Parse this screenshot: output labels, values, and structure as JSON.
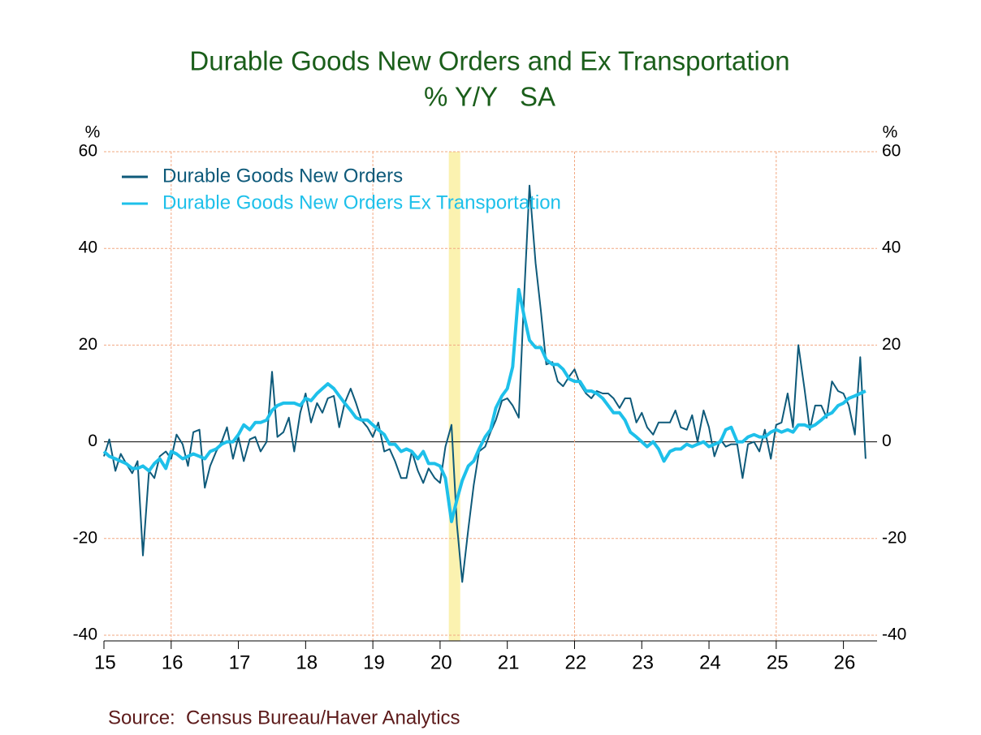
{
  "chart_data": {
    "type": "line",
    "title": "Durable Goods New Orders and Ex Transportation",
    "subtitle": "% Y/Y   SA",
    "y_unit_label": "%",
    "source": "Source:  Census Bureau/Haver Analytics",
    "title_color": "#1a5e1a",
    "source_color": "#5c1a1a",
    "xlim": [
      2015,
      2026.5
    ],
    "ylim": [
      -40,
      60
    ],
    "yticks": [
      -40,
      -20,
      0,
      20,
      40,
      60
    ],
    "xticks": [
      {
        "value": 2015.5,
        "label": "15"
      },
      {
        "value": 2016.5,
        "label": "16"
      },
      {
        "value": 2017.5,
        "label": "17"
      },
      {
        "value": 2018.5,
        "label": "18"
      },
      {
        "value": 2019.5,
        "label": "19"
      },
      {
        "value": 2020.5,
        "label": "20"
      },
      {
        "value": 2021.5,
        "label": "21"
      },
      {
        "value": 2022.5,
        "label": "22"
      },
      {
        "value": 2023.5,
        "label": "23"
      },
      {
        "value": 2024.5,
        "label": "24"
      },
      {
        "value": 2025.5,
        "label": "25"
      },
      {
        "value": 2026.5,
        "label": "26"
      }
    ],
    "xtick_marks": [
      2015,
      2016,
      2017,
      2018,
      2019,
      2020,
      2021,
      2022,
      2023,
      2024,
      2025,
      2026
    ],
    "xgrid_lines": [
      2016,
      2019,
      2022,
      2025
    ],
    "grid": true,
    "grid_color": "#f2a882",
    "shade": {
      "x": [
        2020.13,
        2020.3
      ],
      "color": "#fbf2b0"
    },
    "legend": "upper left",
    "x": [
      2015,
      2015.08,
      2015.17,
      2015.25,
      2015.33,
      2015.42,
      2015.5,
      2015.58,
      2015.67,
      2015.75,
      2015.83,
      2015.92,
      2016,
      2016.08,
      2016.17,
      2016.25,
      2016.33,
      2016.42,
      2016.5,
      2016.58,
      2016.67,
      2016.75,
      2016.83,
      2016.92,
      2017,
      2017.08,
      2017.17,
      2017.25,
      2017.33,
      2017.42,
      2017.5,
      2017.58,
      2017.67,
      2017.75,
      2017.83,
      2017.92,
      2018,
      2018.08,
      2018.17,
      2018.25,
      2018.33,
      2018.42,
      2018.5,
      2018.58,
      2018.67,
      2018.75,
      2018.83,
      2018.92,
      2019,
      2019.08,
      2019.17,
      2019.25,
      2019.33,
      2019.42,
      2019.5,
      2019.58,
      2019.67,
      2019.75,
      2019.83,
      2019.92,
      2020,
      2020.08,
      2020.17,
      2020.25,
      2020.33,
      2020.42,
      2020.5,
      2020.58,
      2020.67,
      2020.75,
      2020.83,
      2020.92,
      2021,
      2021.08,
      2021.17,
      2021.25,
      2021.33,
      2021.42,
      2021.5,
      2021.58,
      2021.67,
      2021.75,
      2021.83,
      2021.92,
      2022,
      2022.08,
      2022.17,
      2022.25,
      2022.33,
      2022.42,
      2022.5,
      2022.58,
      2022.67,
      2022.75,
      2022.83,
      2022.92,
      2023,
      2023.08,
      2023.17,
      2023.25,
      2023.33,
      2023.42,
      2023.5,
      2023.58,
      2023.67,
      2023.75,
      2023.83,
      2023.92,
      2024,
      2024.08,
      2024.17,
      2024.25,
      2024.33,
      2024.42,
      2024.5,
      2024.58,
      2024.67,
      2024.75,
      2024.83,
      2024.92,
      2025,
      2025.08,
      2025.17,
      2025.25,
      2025.33,
      2025.42,
      2025.5,
      2025.58,
      2025.67,
      2025.75,
      2025.83,
      2025.92,
      2026,
      2026.08,
      2026.17,
      2026.25,
      2026.33
    ],
    "series": [
      {
        "name": "Durable Goods New Orders",
        "color": "#0e5a7a",
        "width": 2,
        "values": [
          -3,
          0.5,
          -6,
          -2.5,
          -4.5,
          -6.5,
          -4,
          -23.5,
          -6,
          -7.5,
          -3,
          -2,
          -3.5,
          1.5,
          -0.5,
          -5,
          2,
          2.5,
          -9.5,
          -5,
          -2,
          0,
          3,
          -3.5,
          1,
          -4,
          0.5,
          1,
          -2,
          0,
          14.5,
          1,
          2,
          5,
          -2,
          6,
          10,
          4,
          8,
          6,
          9,
          9.5,
          3,
          8,
          11,
          8,
          4.5,
          3,
          1,
          4,
          -2,
          -1.5,
          -4,
          -7.5,
          -7.5,
          -2,
          -6,
          -8.5,
          -5.5,
          -7.5,
          -8.5,
          -1,
          3.5,
          -17,
          -29,
          -18,
          -9,
          -2,
          -1,
          2,
          4.5,
          8.5,
          9,
          7.5,
          5,
          30,
          53,
          37,
          27,
          16,
          16.5,
          12.5,
          11.5,
          13.5,
          15,
          12,
          10,
          9,
          10.5,
          10,
          10,
          9,
          7,
          9,
          9,
          4,
          6,
          3,
          1.5,
          4,
          4,
          4,
          6.5,
          3,
          2.5,
          5.5,
          0,
          6.5,
          3,
          -3,
          0.5,
          -1,
          -0.5,
          -0.5,
          -7.5,
          -0.5,
          0,
          -2,
          2.5,
          -3.5,
          3.5,
          4,
          10,
          3,
          20,
          11,
          2.5,
          7.5,
          7.5,
          5,
          12.5,
          10.5,
          10,
          7.5,
          1.5,
          17.5,
          -3.5
        ]
      },
      {
        "name": "Durable Goods New Orders Ex Transportation",
        "color": "#1ec0ea",
        "width": 4,
        "values": [
          -2,
          -3,
          -3.5,
          -4,
          -4.5,
          -5.5,
          -5.5,
          -5,
          -6,
          -4.5,
          -3.5,
          -5.5,
          -2,
          -2.5,
          -3.5,
          -3,
          -2.5,
          -3,
          -3.5,
          -2,
          -1.5,
          -0.5,
          0,
          0,
          1.5,
          3.5,
          2.5,
          4,
          4,
          4.5,
          6.5,
          7.5,
          8,
          8,
          8,
          7.5,
          9,
          8.5,
          10,
          11,
          12,
          11,
          9.5,
          8,
          6.5,
          5,
          4.5,
          4.5,
          3.5,
          2.5,
          1.5,
          -0.5,
          -0.5,
          -2,
          -1.5,
          -2,
          -3.5,
          -2,
          -4.5,
          -4.5,
          -5,
          -7.5,
          -16.5,
          -12,
          -8,
          -5,
          -4,
          -1.5,
          1,
          2.5,
          7,
          9.5,
          11,
          15.5,
          31.5,
          26,
          21,
          19.5,
          19.5,
          17,
          16,
          16,
          15,
          13,
          12.5,
          12.5,
          10.5,
          10.5,
          10,
          9,
          7.5,
          6,
          6,
          4.5,
          2,
          1,
          0,
          -1,
          0,
          -1.5,
          -4,
          -2,
          -1.5,
          -1.5,
          -0.5,
          -1,
          -0.5,
          0,
          -1,
          -0.5,
          0,
          2.5,
          3,
          0,
          0,
          1,
          1.5,
          1,
          1,
          2,
          2.5,
          2,
          2.5,
          2,
          3.5,
          3.5,
          3,
          3.5,
          4.5,
          5.5,
          6,
          7.5,
          8,
          9,
          9.5,
          10,
          10.5
        ]
      }
    ]
  }
}
